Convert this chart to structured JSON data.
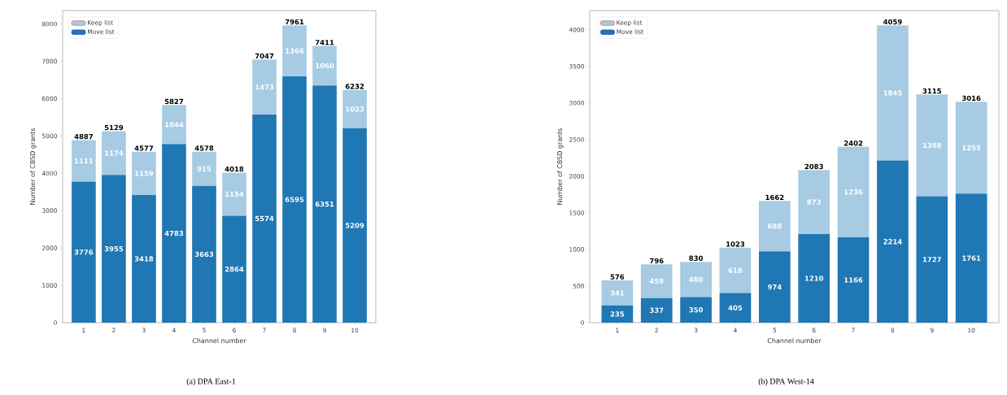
{
  "chart_data": [
    {
      "type": "bar",
      "stacked": true,
      "xlabel": "Channel number",
      "ylabel": "Number of CBSD grants",
      "categories": [
        "1",
        "2",
        "3",
        "4",
        "5",
        "6",
        "7",
        "8",
        "9",
        "10"
      ],
      "series": [
        {
          "name": "Move list",
          "color": "#1f77b4",
          "values": [
            3776,
            3955,
            3418,
            4783,
            3663,
            2864,
            5574,
            6595,
            6351,
            5209
          ]
        },
        {
          "name": "Keep list",
          "color": "#a6cbe3",
          "values": [
            1111,
            1174,
            1159,
            1044,
            915,
            1154,
            1473,
            1366,
            1060,
            1023
          ]
        }
      ],
      "totals": [
        "4887",
        "5129",
        "4577",
        "5827",
        "4578",
        "4018",
        "7047",
        "7961",
        "7411",
        "6232"
      ],
      "data_labels": true,
      "legend": "top left",
      "ylim": [
        0,
        8359
      ],
      "yticks": [
        0,
        1000,
        2000,
        3000,
        4000,
        5000,
        6000,
        7000,
        8000
      ],
      "annotations": [
        "(a) DPA East-1"
      ]
    },
    {
      "type": "bar",
      "stacked": true,
      "xlabel": "Channel number",
      "ylabel": "Number of CBSD grants",
      "categories": [
        "1",
        "2",
        "3",
        "4",
        "5",
        "6",
        "7",
        "8",
        "9",
        "10"
      ],
      "series": [
        {
          "name": "Move list",
          "color": "#1f77b4",
          "values": [
            235,
            337,
            350,
            405,
            974,
            1210,
            1166,
            2214,
            1727,
            1761
          ]
        },
        {
          "name": "Keep list",
          "color": "#a6cbe3",
          "values": [
            341,
            459,
            480,
            618,
            688,
            873,
            1236,
            1845,
            1388,
            1255
          ]
        }
      ],
      "totals": [
        "576",
        "796",
        "830",
        "1023",
        "1662",
        "2083",
        "2402",
        "4059",
        "3115",
        "3016"
      ],
      "data_labels": true,
      "legend": "top left",
      "ylim": [
        0,
        4262
      ],
      "yticks": [
        0,
        500,
        1000,
        1500,
        2000,
        2500,
        3000,
        3500,
        4000
      ],
      "annotations": [
        "(b) DPA West-14"
      ]
    }
  ]
}
